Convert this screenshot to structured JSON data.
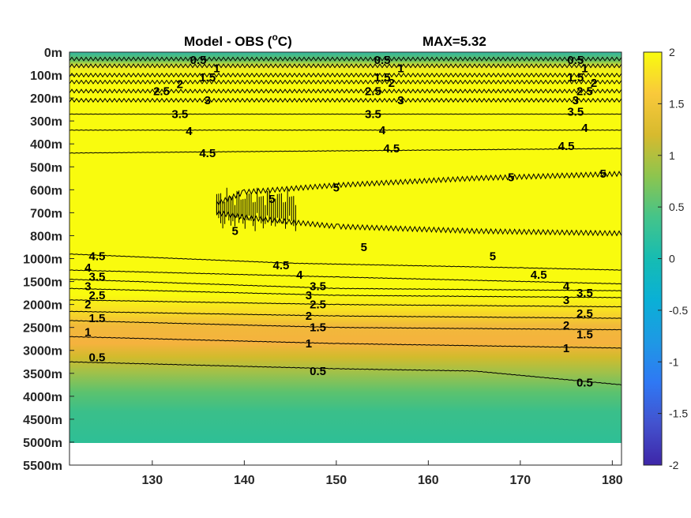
{
  "chart_data": {
    "type": "heatmap",
    "title_left": "Model - OBS (",
    "title_sup": "o",
    "title_unit": "C)",
    "title_right": "MAX=5.32",
    "x_ticks": [
      "130",
      "140",
      "150",
      "160",
      "170",
      "180"
    ],
    "x_values": [
      130,
      140,
      150,
      160,
      170,
      180
    ],
    "xlim": [
      121,
      181
    ],
    "y_ticks": [
      "0m",
      "100m",
      "200m",
      "300m",
      "400m",
      "500m",
      "600m",
      "700m",
      "800m",
      "1000m",
      "1500m",
      "2000m",
      "2500m",
      "3000m",
      "3500m",
      "4000m",
      "4500m",
      "5000m",
      "5500m"
    ],
    "colorbar_ticks": [
      "2",
      "1.5",
      "1",
      "0.5",
      "0",
      "-0.5",
      "-1",
      "-1.5",
      "-2"
    ],
    "colorbar_values": [
      2,
      1.5,
      1,
      0.5,
      0,
      -0.5,
      -1,
      -1.5,
      -2
    ],
    "clim": [
      -2,
      2
    ],
    "colormap": "parula",
    "no_data_below": "5000m",
    "contour_levels": [
      0.5,
      1,
      1.5,
      2,
      2.5,
      3,
      3.5,
      4,
      4.5,
      5
    ],
    "contours": [
      {
        "level": 0.5,
        "label": "0.5",
        "depth_idx": [
          [
            121,
            0.3
          ],
          [
            181,
            0.3
          ]
        ]
      },
      {
        "level": 1,
        "label": "1",
        "depth_idx": [
          [
            121,
            0.6
          ],
          [
            181,
            0.6
          ]
        ]
      },
      {
        "level": 1.5,
        "label": "1.5",
        "depth_idx": [
          [
            121,
            1.0
          ],
          [
            181,
            1.0
          ]
        ]
      },
      {
        "level": 2,
        "label": "2",
        "depth_idx": [
          [
            121,
            1.3
          ],
          [
            181,
            1.3
          ]
        ]
      },
      {
        "level": 2.5,
        "label": "2.5",
        "depth_idx": [
          [
            121,
            1.7
          ],
          [
            181,
            1.7
          ]
        ]
      },
      {
        "level": 3,
        "label": "3",
        "depth_idx": [
          [
            121,
            2.1
          ],
          [
            181,
            2.1
          ]
        ]
      },
      {
        "level": 3.5,
        "label": "3.5",
        "depth_idx": [
          [
            121,
            2.7
          ],
          [
            181,
            2.7
          ]
        ]
      },
      {
        "level": 4,
        "label": "4",
        "depth_idx": [
          [
            121,
            3.4
          ],
          [
            181,
            3.4
          ]
        ]
      },
      {
        "level": 4.5,
        "label": "4.5",
        "depth_idx": [
          [
            121,
            4.4
          ],
          [
            181,
            4.2
          ]
        ]
      },
      {
        "level": 5,
        "label": "5",
        "depth_idx": [
          [
            181,
            5.3
          ],
          [
            165,
            5.5
          ],
          [
            150,
            5.8
          ],
          [
            140,
            6.1
          ],
          [
            137,
            6.6
          ],
          [
            137,
            7.0
          ],
          [
            140,
            7.2
          ],
          [
            150,
            7.6
          ],
          [
            165,
            7.8
          ],
          [
            181,
            7.9
          ]
        ]
      },
      {
        "level": 4.5,
        "label": "4.5",
        "depth_idx": [
          [
            121,
            8.8
          ],
          [
            145,
            9.2
          ],
          [
            170,
            9.4
          ],
          [
            181,
            9.5
          ]
        ]
      },
      {
        "level": 4,
        "label": "4",
        "depth_idx": [
          [
            121,
            9.5
          ],
          [
            150,
            9.8
          ],
          [
            181,
            10.1
          ]
        ]
      },
      {
        "level": 3.5,
        "label": "3.5",
        "depth_idx": [
          [
            121,
            9.9
          ],
          [
            150,
            10.3
          ],
          [
            181,
            10.4
          ]
        ]
      },
      {
        "level": 3,
        "label": "3",
        "depth_idx": [
          [
            121,
            10.3
          ],
          [
            150,
            10.6
          ],
          [
            181,
            10.7
          ]
        ]
      },
      {
        "level": 2.5,
        "label": "2.5",
        "depth_idx": [
          [
            121,
            10.8
          ],
          [
            150,
            11.0
          ],
          [
            181,
            11.1
          ]
        ]
      },
      {
        "level": 2,
        "label": "2",
        "depth_idx": [
          [
            121,
            11.3
          ],
          [
            150,
            11.5
          ],
          [
            181,
            11.6
          ]
        ]
      },
      {
        "level": 1.5,
        "label": "1.5",
        "depth_idx": [
          [
            121,
            11.7
          ],
          [
            150,
            12.0
          ],
          [
            181,
            12.1
          ]
        ]
      },
      {
        "level": 1,
        "label": "1",
        "depth_idx": [
          [
            121,
            12.4
          ],
          [
            150,
            12.7
          ],
          [
            181,
            12.9
          ]
        ]
      },
      {
        "level": 0.5,
        "label": "0.5",
        "depth_idx": [
          [
            121,
            13.5
          ],
          [
            150,
            13.8
          ],
          [
            165,
            13.9
          ],
          [
            181,
            14.5
          ]
        ]
      }
    ],
    "contour_labels": [
      {
        "text": "0.5",
        "x": 135,
        "depth_idx": 0.35
      },
      {
        "text": "1",
        "x": 137,
        "depth_idx": 0.7
      },
      {
        "text": "1.5",
        "x": 136,
        "depth_idx": 1.1
      },
      {
        "text": "2",
        "x": 133,
        "depth_idx": 1.4
      },
      {
        "text": "2.5",
        "x": 131,
        "depth_idx": 1.7
      },
      {
        "text": "3",
        "x": 136,
        "depth_idx": 2.1
      },
      {
        "text": "3.5",
        "x": 133,
        "depth_idx": 2.7
      },
      {
        "text": "4",
        "x": 134,
        "depth_idx": 3.45
      },
      {
        "text": "4.5",
        "x": 136,
        "depth_idx": 4.4
      },
      {
        "text": "0.5",
        "x": 155,
        "depth_idx": 0.35
      },
      {
        "text": "1",
        "x": 157,
        "depth_idx": 0.7
      },
      {
        "text": "1.5",
        "x": 155,
        "depth_idx": 1.1
      },
      {
        "text": "2",
        "x": 156,
        "depth_idx": 1.35
      },
      {
        "text": "2.5",
        "x": 154,
        "depth_idx": 1.7
      },
      {
        "text": "3",
        "x": 157,
        "depth_idx": 2.1
      },
      {
        "text": "3.5",
        "x": 154,
        "depth_idx": 2.7
      },
      {
        "text": "4",
        "x": 155,
        "depth_idx": 3.4
      },
      {
        "text": "4.5",
        "x": 156,
        "depth_idx": 4.2
      },
      {
        "text": "0.5",
        "x": 176,
        "depth_idx": 0.35
      },
      {
        "text": "1",
        "x": 177,
        "depth_idx": 0.7
      },
      {
        "text": "1.5",
        "x": 176,
        "depth_idx": 1.1
      },
      {
        "text": "2",
        "x": 178,
        "depth_idx": 1.35
      },
      {
        "text": "2.5",
        "x": 177,
        "depth_idx": 1.7
      },
      {
        "text": "3",
        "x": 176,
        "depth_idx": 2.1
      },
      {
        "text": "3.5",
        "x": 176,
        "depth_idx": 2.6
      },
      {
        "text": "4",
        "x": 177,
        "depth_idx": 3.3
      },
      {
        "text": "4.5",
        "x": 175,
        "depth_idx": 4.1
      },
      {
        "text": "5",
        "x": 150,
        "depth_idx": 5.9
      },
      {
        "text": "5",
        "x": 169,
        "depth_idx": 5.45
      },
      {
        "text": "5",
        "x": 153,
        "depth_idx": 8.5
      },
      {
        "text": "5",
        "x": 167,
        "depth_idx": 8.9
      },
      {
        "text": "5",
        "x": 179,
        "depth_idx": 5.3
      },
      {
        "text": "5",
        "x": 143,
        "depth_idx": 6.4
      },
      {
        "text": "5",
        "x": 139,
        "depth_idx": 7.8
      },
      {
        "text": "4.5",
        "x": 124,
        "depth_idx": 8.9
      },
      {
        "text": "4",
        "x": 123,
        "depth_idx": 9.4
      },
      {
        "text": "3.5",
        "x": 124,
        "depth_idx": 9.8
      },
      {
        "text": "3",
        "x": 123,
        "depth_idx": 10.2
      },
      {
        "text": "2.5",
        "x": 124,
        "depth_idx": 10.6
      },
      {
        "text": "2",
        "x": 123,
        "depth_idx": 11.0
      },
      {
        "text": "1.5",
        "x": 124,
        "depth_idx": 11.6
      },
      {
        "text": "1",
        "x": 123,
        "depth_idx": 12.2
      },
      {
        "text": "0.5",
        "x": 124,
        "depth_idx": 13.3
      },
      {
        "text": "4.5",
        "x": 144,
        "depth_idx": 9.3
      },
      {
        "text": "4",
        "x": 146,
        "depth_idx": 9.7
      },
      {
        "text": "3.5",
        "x": 148,
        "depth_idx": 10.2
      },
      {
        "text": "3",
        "x": 147,
        "depth_idx": 10.6
      },
      {
        "text": "2.5",
        "x": 148,
        "depth_idx": 11.0
      },
      {
        "text": "2",
        "x": 147,
        "depth_idx": 11.5
      },
      {
        "text": "1.5",
        "x": 148,
        "depth_idx": 12.0
      },
      {
        "text": "1",
        "x": 147,
        "depth_idx": 12.7
      },
      {
        "text": "0.5",
        "x": 148,
        "depth_idx": 13.9
      },
      {
        "text": "4.5",
        "x": 172,
        "depth_idx": 9.7
      },
      {
        "text": "4",
        "x": 175,
        "depth_idx": 10.2
      },
      {
        "text": "3.5",
        "x": 177,
        "depth_idx": 10.5
      },
      {
        "text": "3",
        "x": 175,
        "depth_idx": 10.8
      },
      {
        "text": "2.5",
        "x": 177,
        "depth_idx": 11.4
      },
      {
        "text": "2",
        "x": 175,
        "depth_idx": 11.9
      },
      {
        "text": "1.5",
        "x": 177,
        "depth_idx": 12.3
      },
      {
        "text": "1",
        "x": 175,
        "depth_idx": 12.9
      },
      {
        "text": "0.5",
        "x": 177,
        "depth_idx": 14.4
      }
    ]
  }
}
